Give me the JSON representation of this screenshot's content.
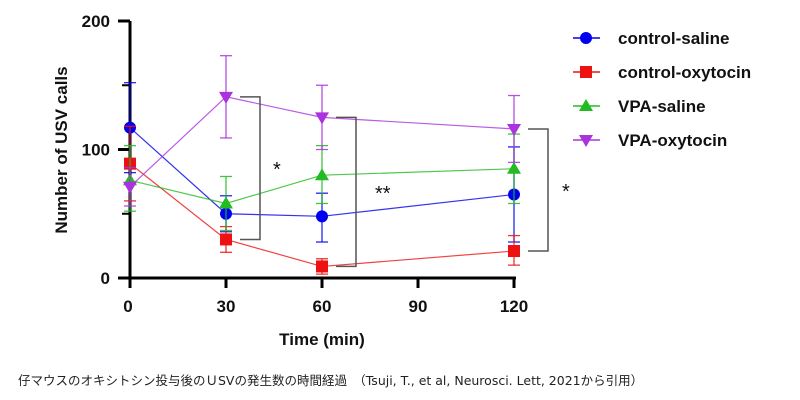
{
  "chart_data": {
    "type": "line",
    "title": "",
    "xlabel": "Time (min)",
    "ylabel": "Number of USV calls",
    "x": [
      0,
      30,
      60,
      120
    ],
    "xticks": [
      "0",
      "30",
      "60",
      "90",
      "120"
    ],
    "xtick_values": [
      0,
      30,
      60,
      90,
      120
    ],
    "yticks": [
      "0",
      "100",
      "200"
    ],
    "ytick_values": [
      0,
      100,
      200
    ],
    "yminor": [
      50,
      150
    ],
    "xlim": [
      0,
      120
    ],
    "ylim": [
      0,
      200
    ],
    "legend_position": "right",
    "series": [
      {
        "name": "control-saline",
        "color": "#0000ee",
        "marker": "circle",
        "values": [
          117,
          50,
          48,
          65
        ],
        "err_upper": [
          152,
          64,
          66,
          102
        ],
        "err_lower": [
          82,
          36,
          28,
          28
        ]
      },
      {
        "name": "control-oxytocin",
        "color": "#ee1111",
        "marker": "square",
        "values": [
          89,
          30,
          9,
          21
        ],
        "err_upper": [
          118,
          40,
          15,
          33
        ],
        "err_lower": [
          60,
          20,
          3,
          10
        ]
      },
      {
        "name": "VPA-saline",
        "color": "#22bb22",
        "marker": "triangle-up",
        "values": [
          76,
          58,
          80,
          85
        ],
        "err_upper": [
          103,
          79,
          103,
          112
        ],
        "err_lower": [
          52,
          37,
          58,
          58
        ]
      },
      {
        "name": "VPA-oxytocin",
        "color": "#aa33dd",
        "marker": "triangle-down",
        "values": [
          71,
          141,
          125,
          116
        ],
        "err_upper": [
          86,
          173,
          150,
          142
        ],
        "err_lower": [
          56,
          109,
          100,
          90
        ]
      }
    ],
    "annotations": [
      {
        "label": "*",
        "x": 30,
        "y_top": 141,
        "y_bottom": 30
      },
      {
        "label": "**",
        "x": 60,
        "y_top": 125,
        "y_bottom": 9
      },
      {
        "label": "*",
        "x": 120,
        "y_top": 116,
        "y_bottom": 21
      }
    ]
  },
  "caption": "仔マウスのオキシトシン投与後のＵSVの発生数の時間経過　（Tsuji, T., et al, Neurosci. Lett, 2021から引用）"
}
